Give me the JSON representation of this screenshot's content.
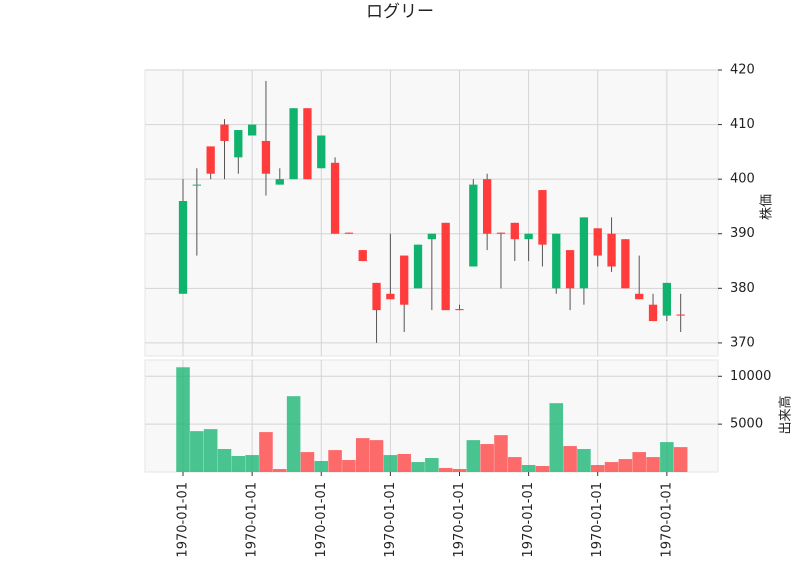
{
  "chart_data": {
    "type": "candlestick",
    "title": "ログリー",
    "ylabel": "株価",
    "volume_label": "出来高",
    "open": [
      379,
      399,
      406,
      410,
      404,
      408,
      407,
      399,
      400,
      413,
      402,
      403,
      390.2,
      387,
      381,
      379,
      386,
      380,
      389,
      392,
      376.2,
      384,
      400,
      390.2,
      392,
      389,
      398,
      380,
      387,
      380,
      391,
      390,
      389,
      379,
      377,
      375,
      375.2
    ],
    "high": [
      400,
      402,
      406,
      411,
      409,
      410,
      418,
      402,
      413,
      413,
      408,
      404,
      390.2,
      387,
      381,
      390,
      386,
      388,
      390,
      392,
      377,
      400,
      401,
      390.2,
      392,
      390,
      398,
      390,
      387,
      393,
      391,
      393,
      389,
      386,
      379,
      381,
      379
    ],
    "low": [
      379,
      386,
      400,
      400,
      401,
      408,
      397,
      399,
      400,
      400,
      402,
      390,
      390,
      385,
      370,
      378,
      372,
      380,
      376,
      376,
      376,
      384,
      387,
      380,
      385,
      385,
      384,
      379,
      376,
      377,
      384,
      383,
      380,
      378,
      374,
      374,
      372
    ],
    "close": [
      396,
      399,
      401,
      407,
      409,
      410,
      401,
      400,
      413,
      400,
      408,
      390,
      390,
      385,
      376,
      378,
      377,
      388,
      390,
      376,
      376,
      399,
      390,
      390,
      389,
      390,
      388,
      390,
      380,
      393,
      386,
      384,
      380,
      378,
      374,
      381,
      375
    ],
    "volume": [
      10940,
      4270,
      4480,
      2400,
      1670,
      1770,
      4170,
      310,
      7920,
      2080,
      1150,
      2290,
      1250,
      3540,
      3330,
      1770,
      1880,
      1040,
      1460,
      420,
      310,
      3330,
      2920,
      3850,
      1560,
      730,
      625,
      7190,
      2710,
      2400,
      730,
      1040,
      1350,
      2080,
      1560,
      3125,
      2600
    ],
    "xlim": [
      -2.75,
      38.7
    ],
    "xticks": [
      {
        "value": 0,
        "label": "1970-01-01"
      },
      {
        "value": 5,
        "label": "1970-01-01"
      },
      {
        "value": 10,
        "label": "1970-01-01"
      },
      {
        "value": 15,
        "label": "1970-01-01"
      },
      {
        "value": 20,
        "label": "1970-01-01"
      },
      {
        "value": 25,
        "label": "1970-01-01"
      },
      {
        "value": 30,
        "label": "1970-01-01"
      },
      {
        "value": 35,
        "label": "1970-01-01"
      }
    ],
    "ylim": [
      367.6,
      420
    ],
    "yticks": [
      370,
      380,
      390,
      400,
      410,
      420
    ],
    "volume_ylim": [
      0,
      11700
    ],
    "volume_yticks": [
      5000,
      10000
    ],
    "up_color": "#0fb36e",
    "down_color": "#ff3b3b",
    "grid": true
  }
}
